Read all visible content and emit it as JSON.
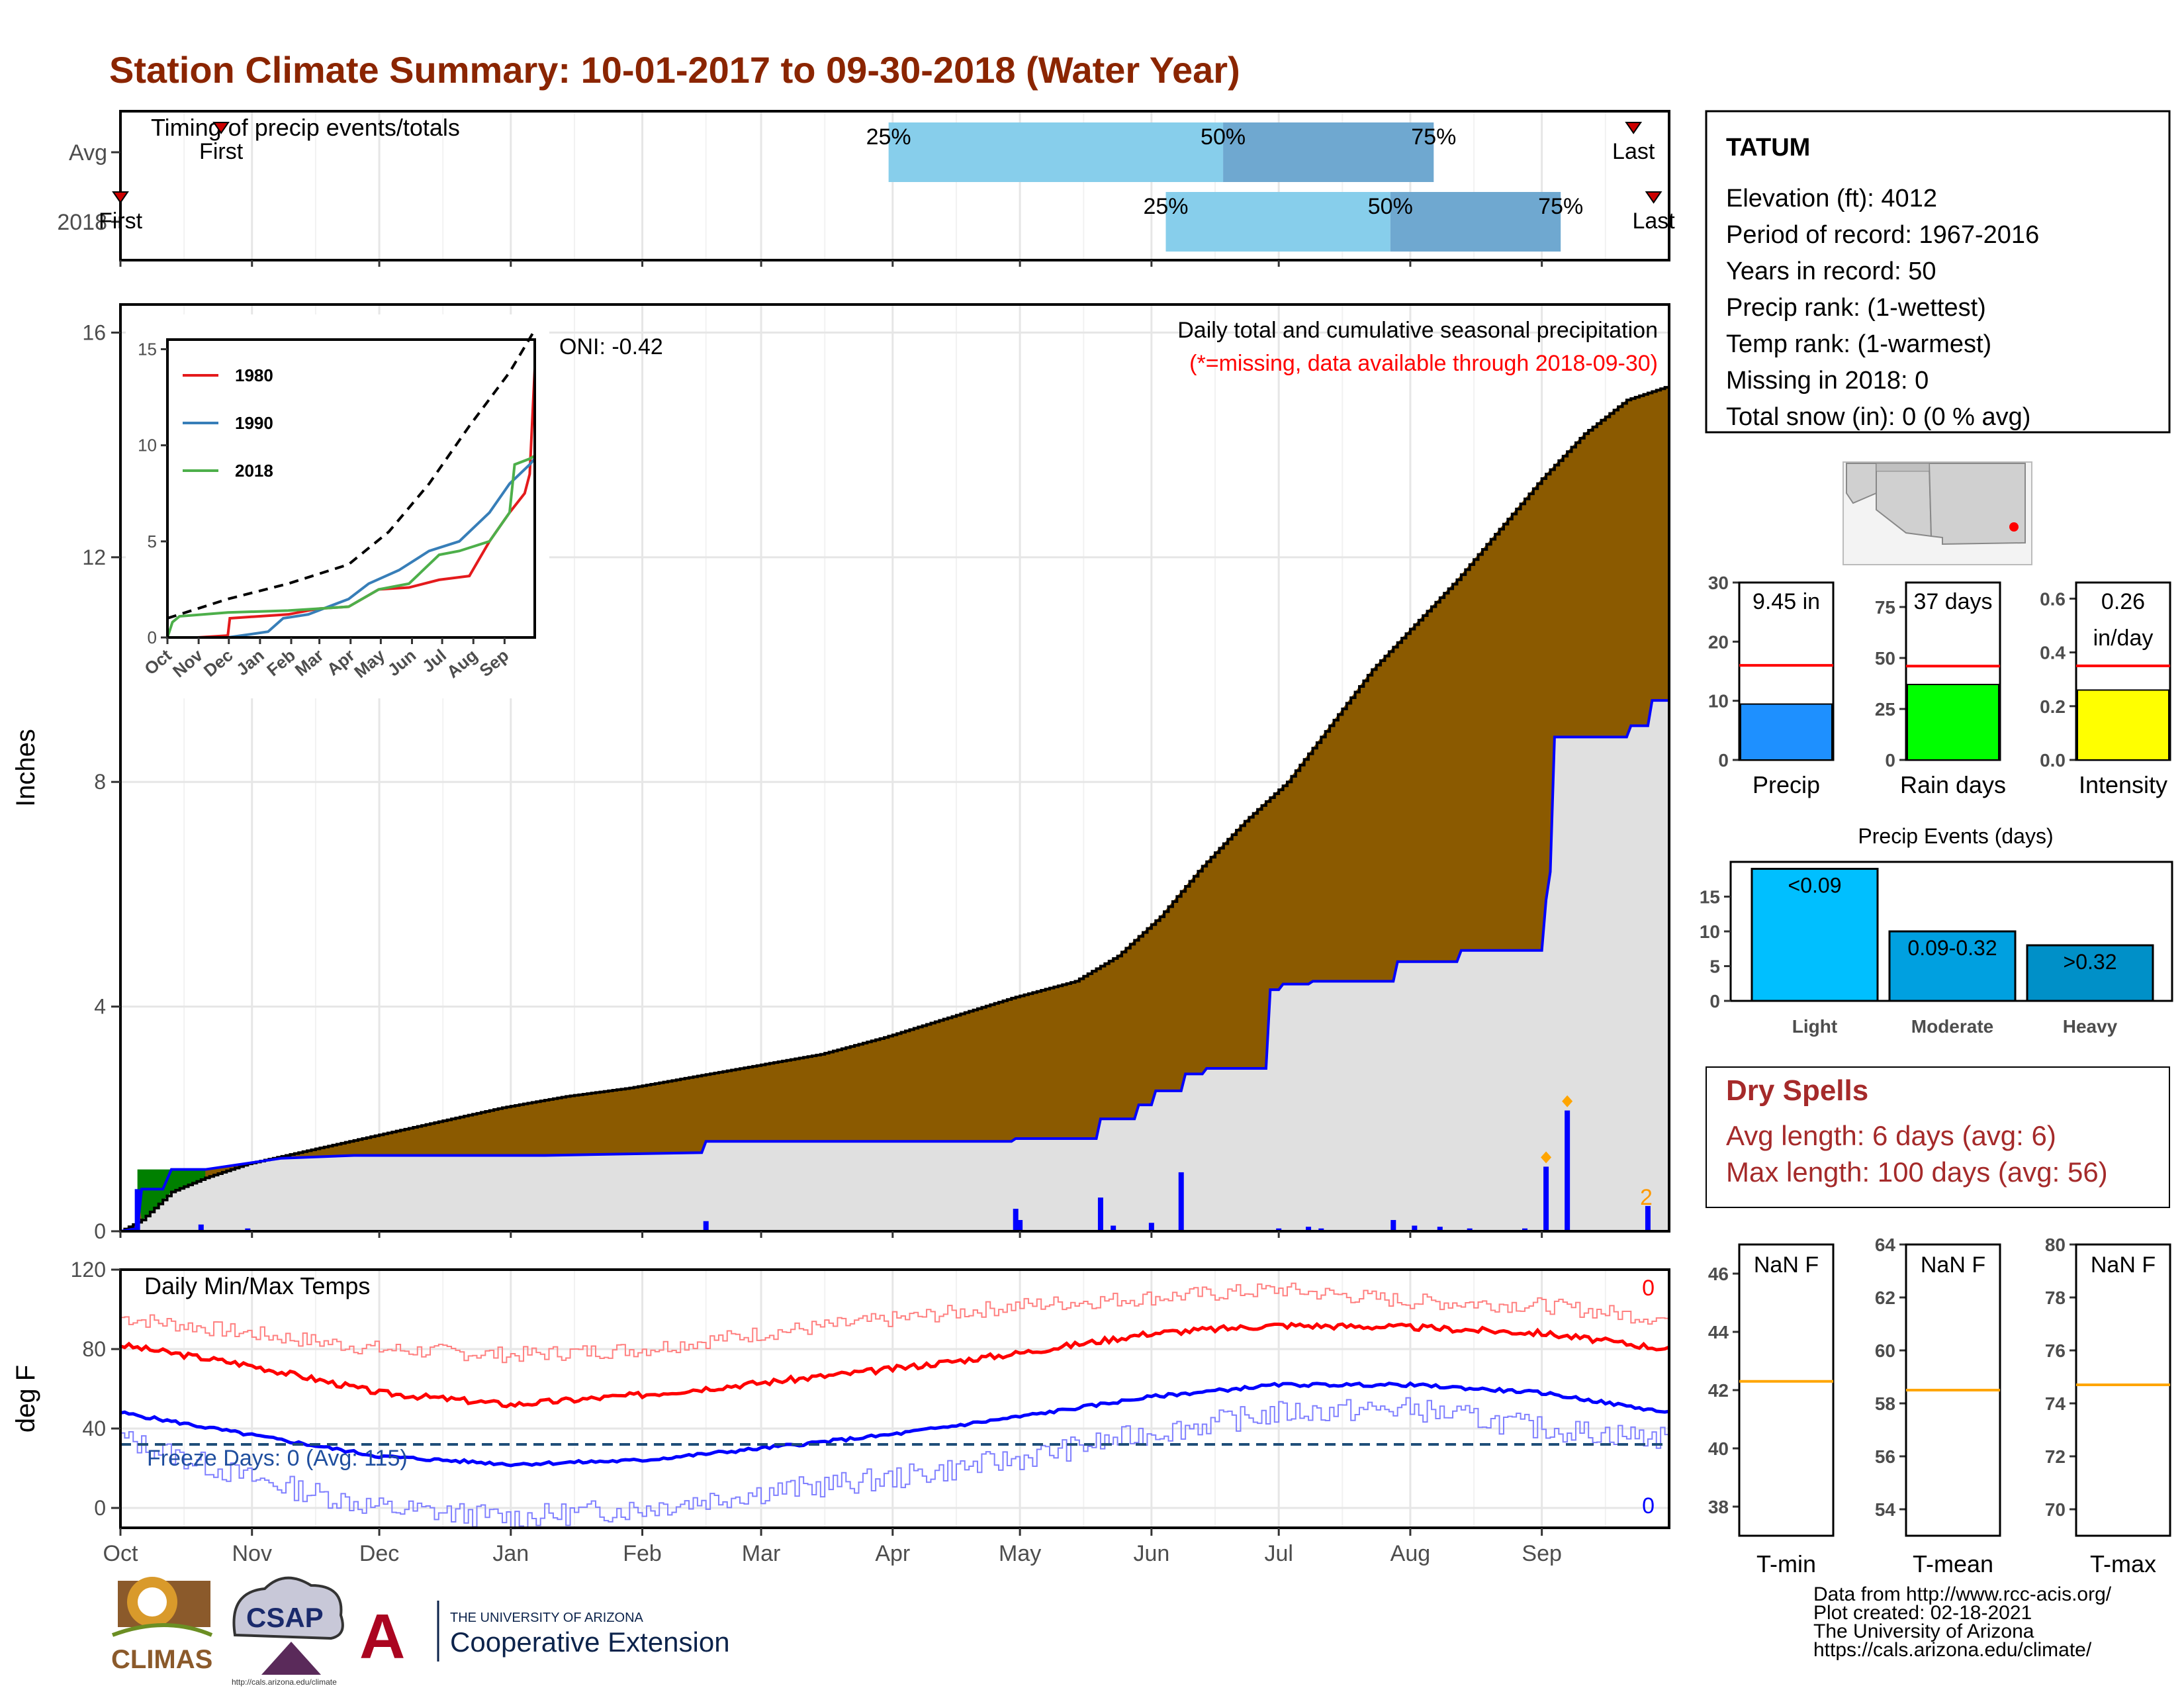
{
  "title": "Station Climate Summary: 10-01-2017 to 09-30-2018 (Water Year)",
  "timing_panel": {
    "title": "Timing of precip events/totals",
    "rows": [
      {
        "label": "Avg",
        "first_label": "First",
        "last_label": "Last",
        "first_frac": 0.065,
        "last_frac": 0.977,
        "p25": {
          "label": "25%",
          "frac": 0.496
        },
        "p50": {
          "label": "50%",
          "frac": 0.712
        },
        "p75": {
          "label": "75%",
          "frac": 0.848
        }
      },
      {
        "label": "2018",
        "first_label": "First",
        "last_label": "Last",
        "first_frac": 0.0,
        "last_frac": 0.99,
        "p25": {
          "label": "25%",
          "frac": 0.675
        },
        "p50": {
          "label": "50%",
          "frac": 0.82
        },
        "p75": {
          "label": "75%",
          "frac": 0.93
        }
      }
    ]
  },
  "precip_panel": {
    "caption": "Daily total and cumulative seasonal precipitation",
    "missing_note": "(*=missing, data available through 2018-09-30)",
    "oni": "ONI: -0.42",
    "y_axis_label": "Inches",
    "y_ticks": [
      "0",
      "4",
      "8",
      "12",
      "16"
    ],
    "annotation_count": "2"
  },
  "temp_panel": {
    "title": "Daily Min/Max Temps",
    "y_axis_label": "deg F",
    "y_ticks": [
      "0",
      "40",
      "80",
      "120"
    ],
    "max_missing_count": "0",
    "min_missing_count": "0",
    "freeze_label": "Freeze Days: 0 (Avg: 115)"
  },
  "month_labels": [
    "Oct",
    "Nov",
    "Dec",
    "Jan",
    "Feb",
    "Mar",
    "Apr",
    "May",
    "Jun",
    "Jul",
    "Aug",
    "Sep"
  ],
  "station_info": {
    "name": "TATUM",
    "elevation": "Elevation (ft): 4012",
    "period": "Period of record: 1967-2016",
    "years": "Years in record: 50",
    "precip_rank": "Precip rank:  (1-wettest)",
    "temp_rank": "Temp rank:  (1-warmest)",
    "missing": "Missing in 2018: 0",
    "snow": "Total snow (in): 0 (0 % avg)"
  },
  "inset_chart": {
    "legend": [
      "1980",
      "1990",
      "2018"
    ],
    "y_ticks": [
      "0",
      "5",
      "10",
      "15"
    ],
    "x_ticks": [
      "Oct",
      "Nov",
      "Dec",
      "Jan",
      "Feb",
      "Mar",
      "Apr",
      "May",
      "Jun",
      "Jul",
      "Aug",
      "Sep"
    ]
  },
  "bar_gauges": [
    {
      "label": "Precip",
      "value_text": "9.45 in",
      "y_ticks": [
        "0",
        "10",
        "20",
        "30"
      ]
    },
    {
      "label": "Rain days",
      "value_text": "37 days",
      "y_ticks": [
        "0",
        "25",
        "50",
        "75"
      ]
    },
    {
      "label": "Intensity",
      "value_text": "0.26",
      "value_unit": "in/day",
      "y_ticks": [
        "0.0",
        "0.2",
        "0.4",
        "0.6"
      ]
    }
  ],
  "precip_events": {
    "title": "Precip Events (days)",
    "y_ticks": [
      "0",
      "5",
      "10",
      "15"
    ],
    "bars": [
      {
        "label": "Light",
        "bar_text": "<0.09"
      },
      {
        "label": "Moderate",
        "bar_text": "0.09-0.32"
      },
      {
        "label": "Heavy",
        "bar_text": ">0.32"
      }
    ]
  },
  "dry_spells": {
    "title": "Dry Spells",
    "avg": "Avg length: 6 days (avg: 6)",
    "max": "Max length: 100 days (avg: 56)"
  },
  "temp_gauges": [
    {
      "label": "T-min",
      "value_text": "NaN F",
      "y_ticks": [
        "38",
        "40",
        "42",
        "44",
        "46"
      ]
    },
    {
      "label": "T-mean",
      "value_text": "NaN F",
      "y_ticks": [
        "54",
        "56",
        "58",
        "60",
        "62",
        "64"
      ]
    },
    {
      "label": "T-max",
      "value_text": "NaN F",
      "y_ticks": [
        "70",
        "72",
        "74",
        "76",
        "78",
        "80"
      ]
    }
  ],
  "footer": {
    "line1": "Data from http://www.rcc-acis.org/",
    "line2": "Plot created: 02-18-2021",
    "line3": "The University of Arizona",
    "line4": "https://cals.arizona.edu/climate/"
  },
  "logos": {
    "climas": "CLIMAS",
    "csap": "CSAP",
    "csap_url": "http://cals.arizona.edu/climate",
    "ua_small": "THE UNIVERSITY OF ARIZONA",
    "ua_ext": "Cooperative Extension"
  },
  "chart_data": [
    {
      "type": "area",
      "title": "Daily total and cumulative seasonal precipitation",
      "ylabel": "Inches",
      "xlabel": "",
      "ylim": [
        0,
        16.5
      ],
      "x_months": [
        "Oct",
        "Nov",
        "Dec",
        "Jan",
        "Feb",
        "Mar",
        "Apr",
        "May",
        "Jun",
        "Jul",
        "Aug",
        "Sep"
      ],
      "series": [
        {
          "name": "Avg cumulative",
          "color": "#8b5a00",
          "x_day": [
            0,
            5,
            12,
            20,
            30,
            45,
            60,
            75,
            90,
            105,
            120,
            135,
            150,
            165,
            180,
            195,
            210,
            225,
            235,
            245,
            255,
            265,
            275,
            285,
            295,
            305,
            315,
            325,
            335,
            345,
            355,
            365
          ],
          "values": [
            0,
            0.2,
            0.7,
            0.95,
            1.2,
            1.45,
            1.7,
            1.95,
            2.2,
            2.4,
            2.55,
            2.75,
            2.95,
            3.15,
            3.45,
            3.8,
            4.15,
            4.45,
            4.9,
            5.6,
            6.5,
            7.3,
            8.0,
            9.0,
            10.0,
            10.8,
            11.6,
            12.5,
            13.4,
            14.2,
            14.8,
            15.05
          ]
        },
        {
          "name": "2018 cumulative",
          "color": "#0000ff",
          "x_day": [
            0,
            4,
            5,
            10,
            12,
            20,
            38,
            55,
            100,
            137,
            138,
            210,
            211,
            230,
            231,
            239,
            240,
            243,
            244,
            250,
            251,
            255,
            256,
            270,
            271,
            273,
            274,
            280,
            281,
            300,
            301,
            315,
            316,
            335,
            336,
            337,
            338,
            355,
            356,
            360,
            361,
            365
          ],
          "values": [
            0,
            0.05,
            0.75,
            0.75,
            1.1,
            1.1,
            1.3,
            1.35,
            1.35,
            1.4,
            1.6,
            1.6,
            1.65,
            1.65,
            2.0,
            2.0,
            2.25,
            2.25,
            2.5,
            2.5,
            2.8,
            2.8,
            2.9,
            2.9,
            4.3,
            4.3,
            4.4,
            4.4,
            4.45,
            4.45,
            4.8,
            4.8,
            5.0,
            5.0,
            5.9,
            6.4,
            8.8,
            8.8,
            9.0,
            9.0,
            9.45,
            9.45
          ]
        },
        {
          "name": "Daily precip",
          "color": "#0000ff",
          "x_day": [
            4,
            19,
            30,
            138,
            211,
            212,
            231,
            234,
            243,
            250,
            273,
            280,
            283,
            300,
            305,
            311,
            318,
            331,
            336,
            341,
            360
          ],
          "values": [
            0.75,
            0.12,
            0.05,
            0.18,
            0.4,
            0.2,
            0.6,
            0.1,
            0.15,
            1.05,
            0.05,
            0.08,
            0.05,
            0.2,
            0.1,
            0.08,
            0.05,
            0.05,
            1.15,
            2.15,
            0.45
          ]
        }
      ]
    },
    {
      "type": "line",
      "title": "Daily Min/Max Temps",
      "ylabel": "deg F",
      "ylim": [
        -10,
        120
      ],
      "series": [
        {
          "name": "Avg max",
          "color": "#ff0000",
          "x_day": [
            0,
            30,
            61,
            92,
            123,
            151,
            182,
            212,
            243,
            273,
            304,
            335,
            365
          ],
          "values": [
            82,
            72,
            58,
            52,
            57,
            63,
            70,
            78,
            88,
            92,
            91,
            88,
            80
          ]
        },
        {
          "name": "Avg min",
          "color": "#0000ff",
          "x_day": [
            0,
            30,
            61,
            92,
            123,
            151,
            182,
            212,
            243,
            273,
            304,
            335,
            365
          ],
          "values": [
            48,
            37,
            26,
            22,
            24,
            30,
            37,
            46,
            56,
            62,
            62,
            58,
            48
          ]
        },
        {
          "name": "Record max",
          "color": "#ff8080",
          "x_day": [
            0,
            30,
            61,
            92,
            123,
            151,
            182,
            212,
            243,
            273,
            304,
            335,
            365
          ],
          "values": [
            96,
            88,
            80,
            77,
            80,
            88,
            95,
            102,
            106,
            110,
            104,
            102,
            95
          ]
        },
        {
          "name": "Record min",
          "color": "#8080ff",
          "x_day": [
            0,
            30,
            61,
            92,
            123,
            151,
            182,
            212,
            243,
            273,
            304,
            335,
            365
          ],
          "values": [
            35,
            15,
            0,
            -5,
            0,
            8,
            15,
            25,
            38,
            48,
            50,
            40,
            35
          ]
        }
      ],
      "freeze_line": 32
    },
    {
      "type": "bar",
      "title": "Precip Events (days)",
      "categories": [
        "Light",
        "Moderate",
        "Heavy"
      ],
      "values": [
        19,
        10,
        8
      ],
      "ylim": [
        0,
        20
      ]
    },
    {
      "type": "bar",
      "categories": [
        "Precip",
        "Rain days",
        "Intensity"
      ],
      "values": [
        9.45,
        37,
        0.26
      ],
      "averages": [
        16,
        46,
        0.35
      ]
    }
  ]
}
